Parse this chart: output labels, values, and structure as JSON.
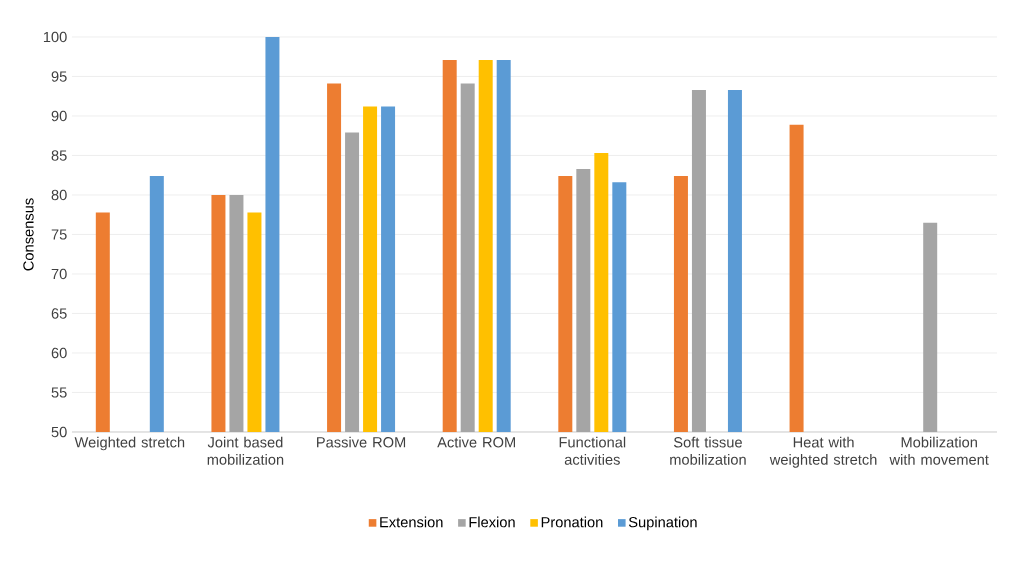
{
  "chart_data": {
    "type": "bar",
    "ylabel": "Consensus",
    "categories": [
      "Weighted stretch",
      "Joint based mobilization",
      "Passive ROM",
      "Active ROM",
      "Functional activities",
      "Soft tissue mobilization",
      "Heat with weighted stretch",
      "Mobilization with movement"
    ],
    "series": [
      {
        "name": "Extension",
        "color": "#ed7d31",
        "values": [
          77.8,
          80,
          94.1,
          97.1,
          82.4,
          82.4,
          88.9,
          null
        ]
      },
      {
        "name": "Flexion",
        "color": "#a5a5a5",
        "values": [
          null,
          80,
          87.9,
          94.1,
          83.3,
          93.3,
          null,
          76.5
        ]
      },
      {
        "name": "Pronation",
        "color": "#ffc000",
        "values": [
          null,
          77.8,
          91.2,
          97.1,
          85.3,
          null,
          null,
          null
        ]
      },
      {
        "name": "Supination",
        "color": "#5b9bd5",
        "values": [
          82.4,
          100,
          91.2,
          97.1,
          81.6,
          93.3,
          null,
          null
        ]
      }
    ],
    "ylim": [
      50,
      100
    ],
    "yticks": [
      50,
      55,
      60,
      65,
      70,
      75,
      80,
      85,
      90,
      95,
      100
    ],
    "grid": "y",
    "legend": "bottom"
  }
}
